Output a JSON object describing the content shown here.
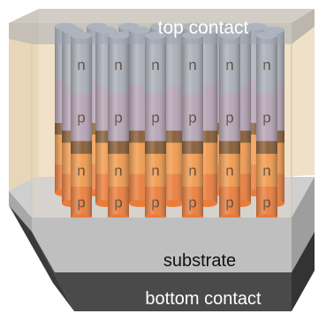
{
  "labels": {
    "top_contact": "top contact",
    "substrate": "substrate",
    "bottom_contact": "bottom contact"
  },
  "segments": {
    "upper_n": "n",
    "upper_p": "p",
    "lower_n": "n",
    "lower_p": "p"
  },
  "colors": {
    "encapsulant": "#f7e6c8",
    "top_contact": "#a9adb3",
    "substrate": "#bfbfbf",
    "bottom_contact": "#4a4a4a",
    "upper_n": "#98a3b6",
    "upper_p": "#a696b2",
    "junction": "#6b3c12",
    "lower_n": "#f08a32",
    "lower_p": "#e8661c"
  }
}
